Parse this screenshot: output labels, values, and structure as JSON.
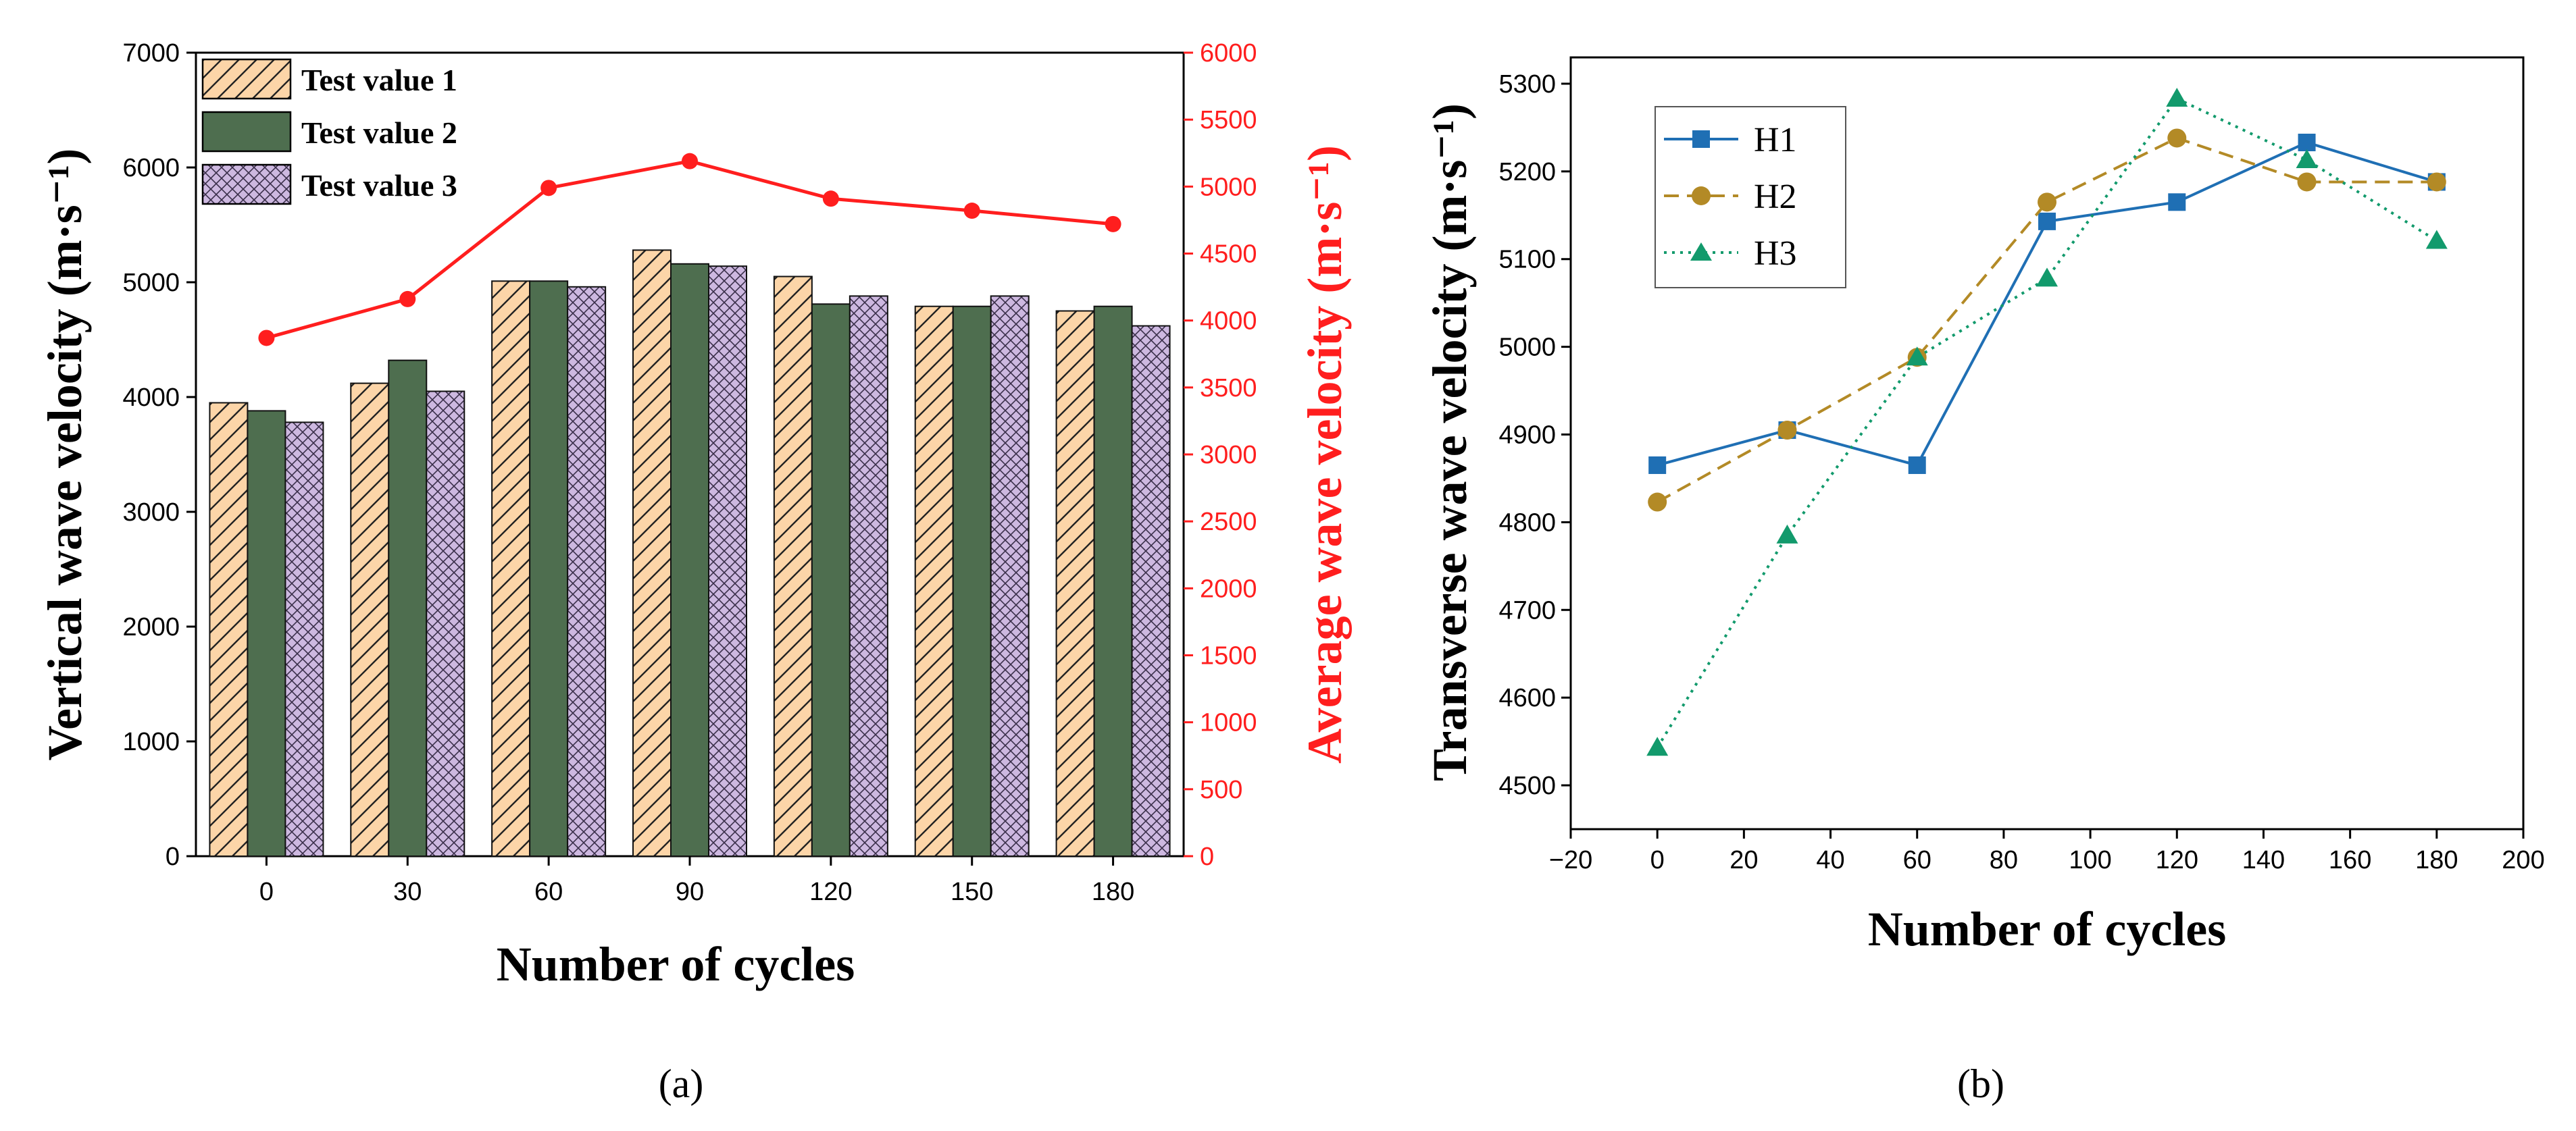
{
  "chart_data": [
    {
      "type": "bar",
      "panel_label": "(a)",
      "categories": [
        "0",
        "30",
        "60",
        "90",
        "120",
        "150",
        "180"
      ],
      "series": [
        {
          "name": "Test value 1",
          "values": [
            3950,
            4120,
            5010,
            5280,
            5050,
            4790,
            4750
          ],
          "color": "#fcd5a8",
          "pattern": "diagonal"
        },
        {
          "name": "Test value 2",
          "values": [
            3880,
            4320,
            5010,
            5160,
            4810,
            4790,
            4790
          ],
          "color": "#4e6e4f",
          "pattern": "solid"
        },
        {
          "name": "Test value 3",
          "values": [
            3780,
            4050,
            4960,
            5140,
            4880,
            4880,
            4620
          ],
          "color": "#cdb8e0",
          "pattern": "crosshatch"
        }
      ],
      "line": {
        "name": "Average wave velocity",
        "values": [
          3870,
          4160,
          4990,
          5190,
          4910,
          4820,
          4720
        ],
        "color": "#ff1e1e"
      },
      "xlabel": "Number of cycles",
      "ylabel": "Vertical wave velocity (m·s⁻¹)",
      "y2label": "Average wave velocity (m·s⁻¹)",
      "ylim": [
        0,
        7000
      ],
      "y2lim": [
        0,
        6000
      ],
      "yticks": [
        0,
        1000,
        2000,
        3000,
        4000,
        5000,
        6000,
        7000
      ],
      "y2ticks": [
        0,
        500,
        1000,
        1500,
        2000,
        2500,
        3000,
        3500,
        4000,
        4500,
        5000,
        5500,
        6000
      ],
      "legend": "top-left"
    },
    {
      "type": "line",
      "panel_label": "(b)",
      "x": [
        0,
        30,
        60,
        90,
        120,
        150,
        180
      ],
      "series": [
        {
          "name": "H1",
          "values": [
            4865,
            4905,
            4865,
            5143,
            5165,
            5233,
            5188
          ],
          "color": "#1f6fb4",
          "marker": "square",
          "dash": "solid"
        },
        {
          "name": "H2",
          "values": [
            4823,
            4905,
            4988,
            5165,
            5238,
            5188,
            5188
          ],
          "color": "#b38a26",
          "marker": "circle",
          "dash": "dashed"
        },
        {
          "name": "H3",
          "values": [
            4543,
            4785,
            4988,
            5078,
            5283,
            5213,
            5121
          ],
          "color": "#129a6c",
          "marker": "triangle",
          "dash": "dotted"
        }
      ],
      "xlabel": "Number of cycles",
      "ylabel": "Transverse wave velocity (m·s⁻¹)",
      "xlim": [
        -20,
        200
      ],
      "ylim": [
        4450,
        5330
      ],
      "xticks": [
        -20,
        0,
        20,
        40,
        60,
        80,
        100,
        120,
        140,
        160,
        180,
        200
      ],
      "xtick_labels": [
        "−20",
        "0",
        "20",
        "40",
        "60",
        "80",
        "100",
        "120",
        "140",
        "160",
        "180",
        "200"
      ],
      "yticks": [
        4500,
        4600,
        4700,
        4800,
        4900,
        5000,
        5100,
        5200,
        5300
      ],
      "legend": "top-left"
    }
  ]
}
